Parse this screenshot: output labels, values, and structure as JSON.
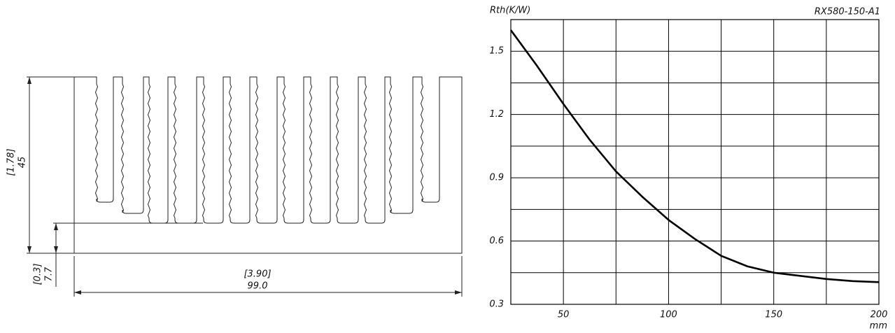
{
  "drawing": {
    "dimensions": [
      {
        "inch": "[1.78]",
        "mm": "45"
      },
      {
        "inch": "[0.3]",
        "mm": "7.7"
      },
      {
        "inch": "[3.90]",
        "mm": "99.0"
      }
    ]
  },
  "chart_data": {
    "type": "line",
    "title": "RX580-150-A1",
    "y_label": "Rth(K/W)",
    "x_label": "mm",
    "x": [
      25,
      37.5,
      50,
      62.5,
      75,
      87.5,
      100,
      112.5,
      125,
      137.5,
      150,
      162.5,
      175,
      187.5,
      200
    ],
    "values": [
      1.6,
      1.43,
      1.25,
      1.08,
      0.93,
      0.81,
      0.7,
      0.61,
      0.53,
      0.48,
      0.45,
      0.435,
      0.42,
      0.41,
      0.405
    ],
    "color": "#000000",
    "xlim": [
      25,
      200
    ],
    "xticks": [
      50,
      100,
      150,
      200
    ],
    "xminor": [
      75,
      125,
      175
    ],
    "ylim": [
      0.3,
      1.65
    ],
    "yticks": [
      0.3,
      0.6,
      0.9,
      1.2,
      1.5
    ],
    "yminor": [
      0.45,
      0.75,
      1.05,
      1.35
    ],
    "grid": true
  }
}
